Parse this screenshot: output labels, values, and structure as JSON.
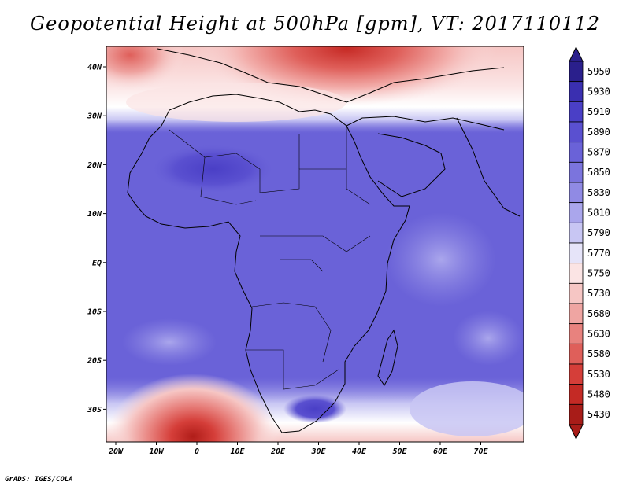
{
  "title": "Geopotential Height at 500hPa [gpm], VT: 2017110112",
  "credit": "GrADS: IGES/COLA",
  "map": {
    "region": "Africa",
    "lat_ticks": [
      "40N",
      "30N",
      "20N",
      "10N",
      "EQ",
      "10S",
      "20S",
      "30S"
    ],
    "lon_ticks": [
      "20W",
      "10W",
      "0",
      "10E",
      "20E",
      "30E",
      "40E",
      "50E",
      "60E",
      "70E"
    ]
  },
  "colorbar": {
    "levels": [
      "5950",
      "5930",
      "5910",
      "5890",
      "5870",
      "5850",
      "5830",
      "5810",
      "5790",
      "5770",
      "5750",
      "5730",
      "5680",
      "5630",
      "5580",
      "5530",
      "5480",
      "5430"
    ],
    "colors": [
      "#2a1f8c",
      "#3a2fb0",
      "#4a3fc6",
      "#5a50d0",
      "#6a62d8",
      "#7b74dd",
      "#908ae4",
      "#aaa6ec",
      "#c8c6f3",
      "#e6e4f9",
      "#fbe4e4",
      "#f6c6c4",
      "#efa5a2",
      "#e8827e",
      "#df5f5a",
      "#d53e39",
      "#c42a25",
      "#a81c18"
    ]
  }
}
